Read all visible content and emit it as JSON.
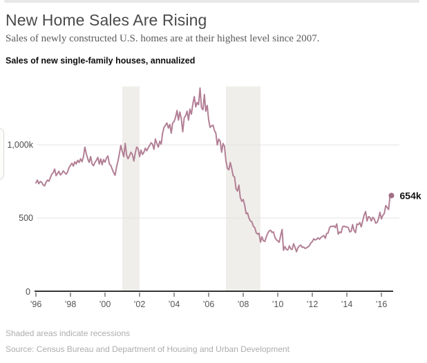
{
  "header": {
    "title": "New Home Sales Are Rising",
    "subtitle": "Sales of newly constructed U.S. homes are at their highest level since 2007."
  },
  "chart_data": {
    "type": "line",
    "title": "Sales of new single-family houses, annualized",
    "ylabel": "",
    "xlabel": "",
    "ylim": [
      0,
      1400
    ],
    "xlim": [
      1996,
      2016.8
    ],
    "grid": "horizontal",
    "y_gridlines": [
      {
        "value": 1000,
        "label": "1,000k"
      },
      {
        "value": 500,
        "label": "500"
      }
    ],
    "y_axis_zero_label": "0",
    "x_ticks": [
      {
        "year": 1996,
        "label": "’96"
      },
      {
        "year": 1998,
        "label": "’98"
      },
      {
        "year": 2000,
        "label": "’00"
      },
      {
        "year": 2002,
        "label": "’02"
      },
      {
        "year": 2004,
        "label": "’04"
      },
      {
        "year": 2006,
        "label": "’06"
      },
      {
        "year": 2008,
        "label": "’08"
      },
      {
        "year": 2010,
        "label": "’10"
      },
      {
        "year": 2012,
        "label": "’12"
      },
      {
        "year": 2014,
        "label": "’14"
      },
      {
        "year": 2016,
        "label": "’16"
      }
    ],
    "recessions": [
      {
        "start": 2001.0,
        "end": 2002.0
      },
      {
        "start": 2007.0,
        "end": 2009.0
      }
    ],
    "series": [
      {
        "name": "New single-family home sales (thousands, annual rate)",
        "start_year": 1996,
        "interval": "monthly",
        "values": [
          740,
          760,
          735,
          750,
          745,
          728,
          720,
          745,
          760,
          752,
          775,
          800,
          810,
          835,
          790,
          805,
          820,
          795,
          805,
          823,
          810,
          800,
          815,
          845,
          860,
          875,
          855,
          885,
          870,
          895,
          880,
          905,
          885,
          920,
          985,
          940,
          905,
          880,
          920,
          870,
          858,
          880,
          895,
          915,
          870,
          905,
          865,
          900,
          882,
          910,
          925,
          870,
          860,
          835,
          810,
          793,
          850,
          890,
          940,
          997,
          955,
          920,
          1010,
          930,
          905,
          925,
          950,
          935,
          890,
          945,
          985,
          975,
          920,
          965,
          935,
          950,
          978,
          960,
          980,
          996,
          1015,
          1005,
          970,
          1040,
          1010,
          985,
          1025,
          1005,
          1080,
          1120,
          1135,
          1150,
          1115,
          1140,
          1080,
          1150,
          1160,
          1190,
          1235,
          1170,
          1225,
          1180,
          1090,
          1185,
          1200,
          1230,
          1170,
          1245,
          1210,
          1280,
          1330,
          1260,
          1290,
          1275,
          1389,
          1255,
          1240,
          1345,
          1230,
          1270,
          1170,
          1120,
          1130,
          1135,
          1100,
          1080,
          1000,
          1040,
          1025,
          950,
          1010,
          990,
          890,
          840,
          830,
          880,
          840,
          790,
          780,
          700,
          685,
          725,
          640,
          615,
          627,
          590,
          530,
          535,
          500,
          480,
          475,
          445,
          435,
          400,
          390,
          396,
          336,
          372,
          345,
          340,
          370,
          395,
          412,
          417,
          402,
          405,
          370,
          352,
          345,
          335,
          380,
          422,
          280,
          305,
          285,
          282,
          310,
          290,
          285,
          325,
          300,
          270,
          297,
          310,
          315,
          300,
          302,
          292,
          297,
          303,
          312,
          330,
          339,
          358,
          350,
          355,
          365,
          355,
          367,
          375,
          380,
          362,
          395,
          398,
          435,
          445,
          442,
          446,
          435,
          460,
          390,
          405,
          400,
          440,
          445,
          440,
          440,
          435,
          405,
          410,
          455,
          415,
          400,
          460,
          455,
          470,
          440,
          480,
          520,
          545,
          480,
          510,
          505,
          480,
          505,
          495,
          465,
          470,
          495,
          540,
          494,
          519,
          531,
          586,
          572,
          558,
          654
        ]
      }
    ],
    "end_label": "654k",
    "legend": "none",
    "colors": {
      "line": "#b27f95",
      "dot": "#a06e85",
      "recession": "#f0eeea",
      "grid": "#e3e3e3",
      "axis": "#333333",
      "tick": "#777777"
    }
  },
  "footer": {
    "note": "Shaded areas indicate recessions",
    "source": "Source: Census Bureau and Department of Housing and Urban Development"
  }
}
